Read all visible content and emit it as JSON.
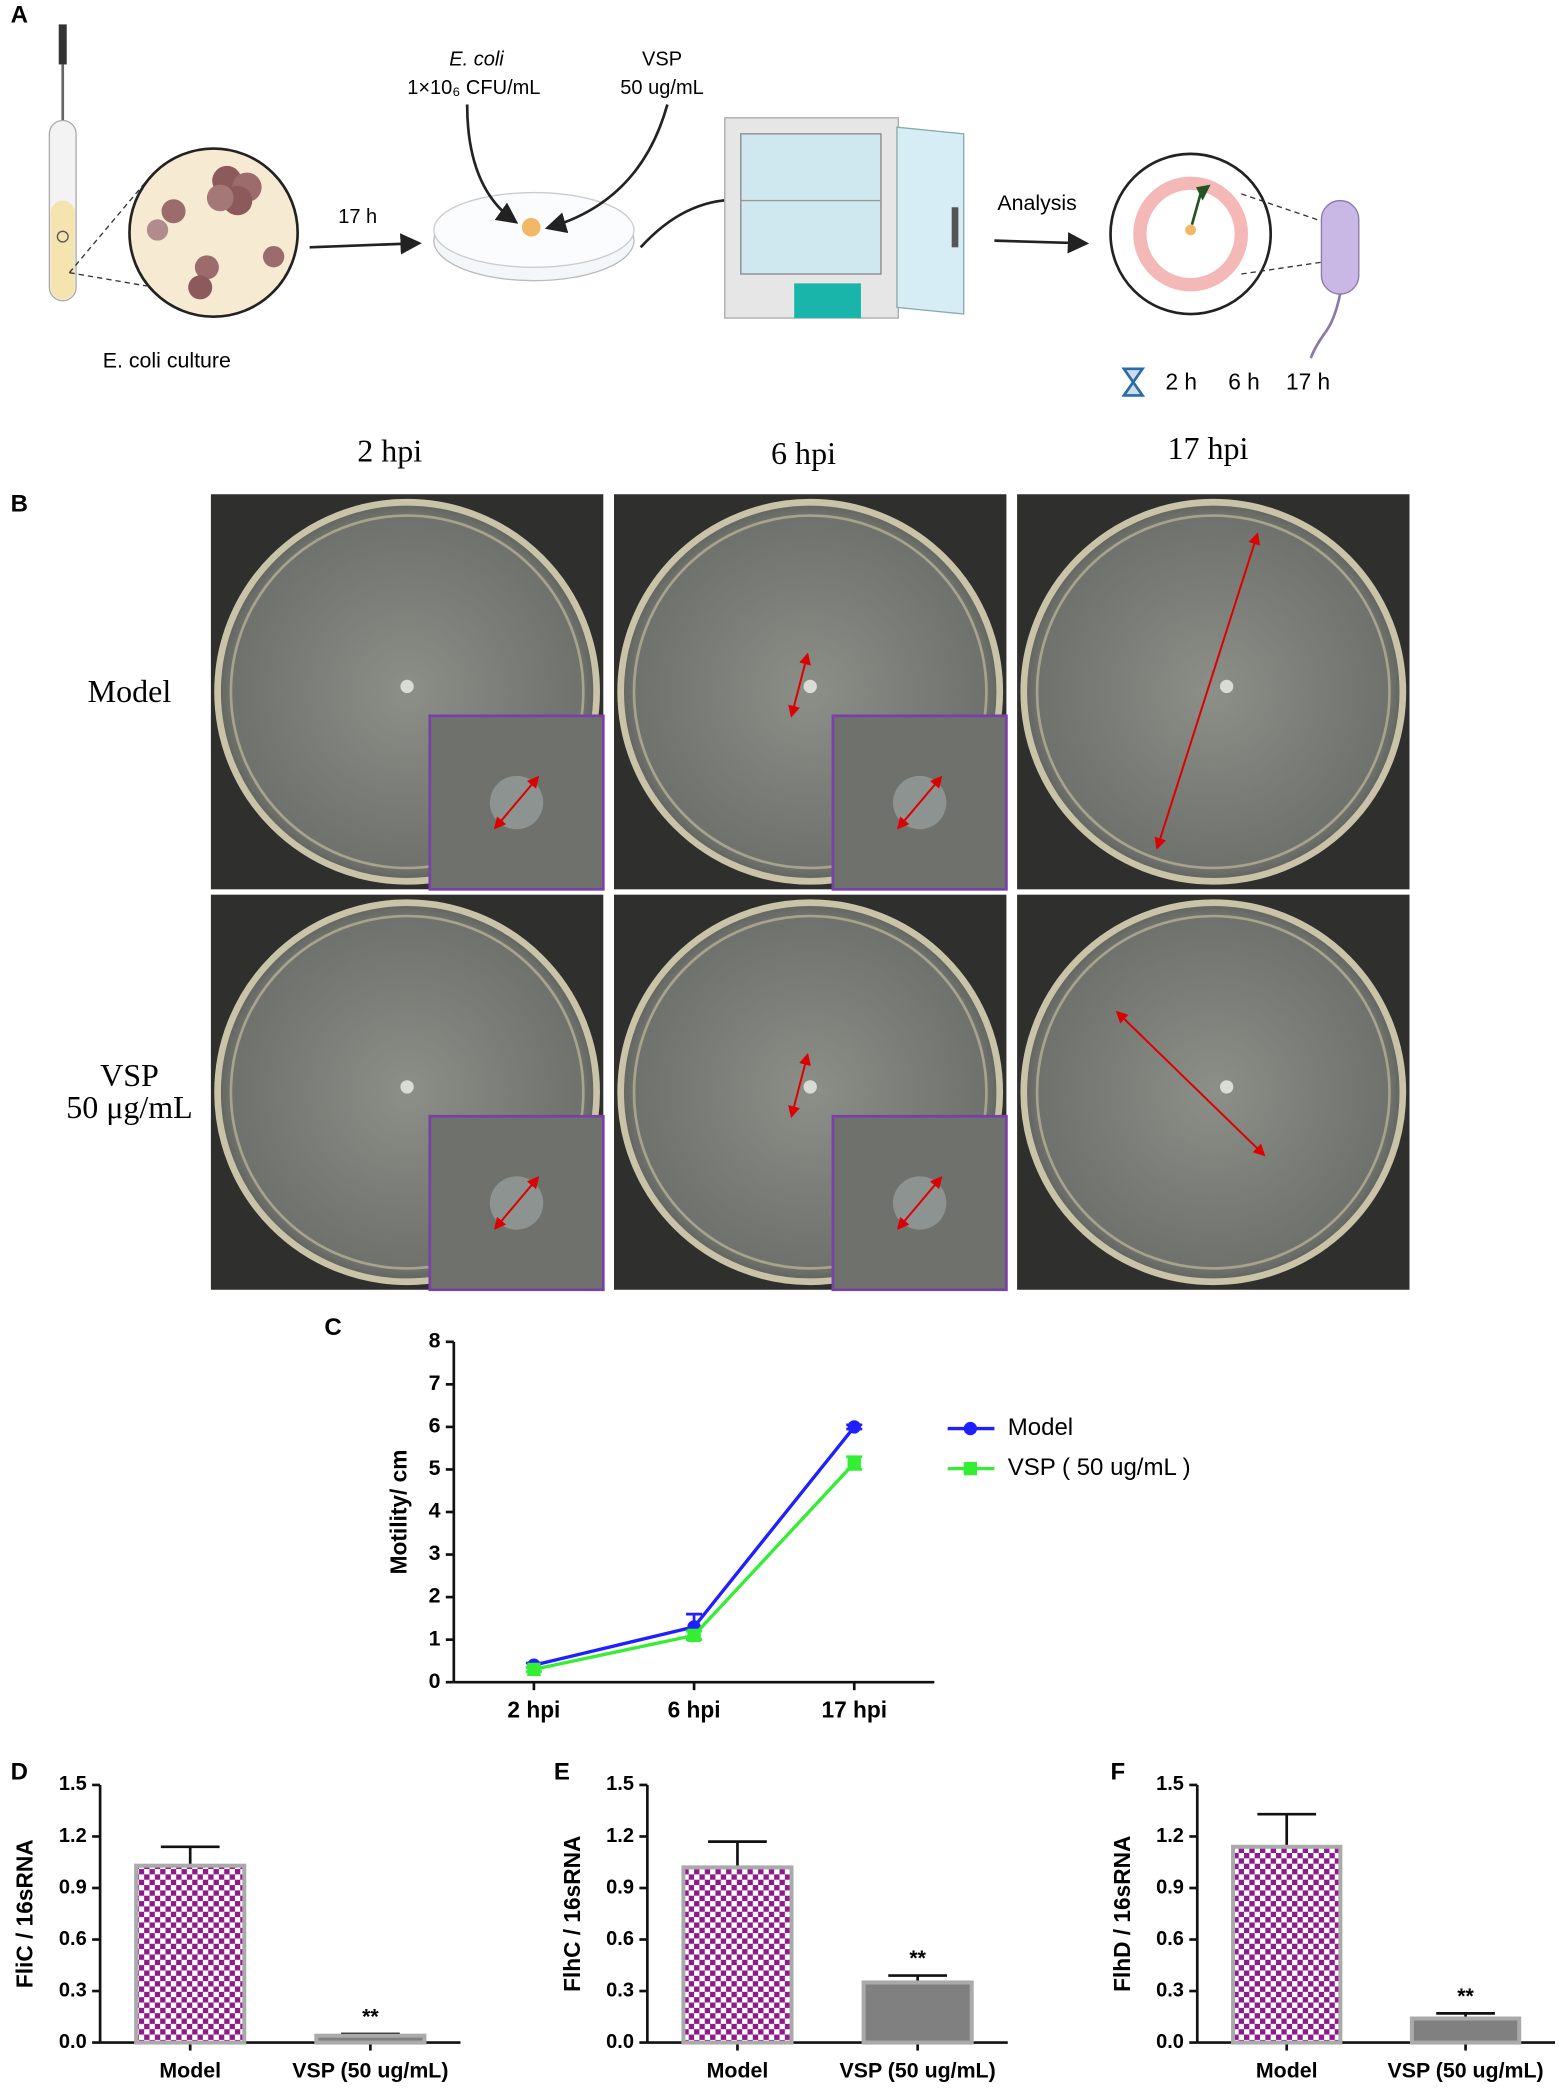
{
  "panel_a": {
    "letter": "A",
    "inoculum_organism": "E. coli",
    "inoculum_dose": "1×10₆ CFU/mL",
    "treatment": "VSP",
    "treatment_dose": "50 ug/mL",
    "incubation": "17 h",
    "step": "Analysis",
    "culture": "E. coli culture",
    "timepoints": [
      "2 h",
      "6 h",
      "17 h"
    ]
  },
  "panel_b": {
    "letter": "B",
    "columns": [
      "2 hpi",
      "6 hpi",
      "17 hpi"
    ],
    "rows": [
      [
        "Model"
      ],
      [
        "VSP",
        "50 μg/mL"
      ]
    ]
  },
  "chart_data": [
    {
      "type": "line",
      "panel": "C",
      "y_label": "Motility/ cm",
      "categories": [
        "2 hpi",
        "6 hpi",
        "17 hpi"
      ],
      "series": [
        {
          "name": "Model",
          "color": "#1f1fff",
          "marker": "circle",
          "values": [
            0.4,
            1.3,
            6.0
          ],
          "errors": [
            0.05,
            0.3,
            0.05
          ]
        },
        {
          "name": "VSP ( 50 ug/mL )",
          "color": "#33ee33",
          "marker": "square",
          "values": [
            0.3,
            1.1,
            5.15
          ],
          "errors": [
            0.05,
            0.1,
            0.15
          ]
        }
      ],
      "ylim": [
        0,
        8
      ],
      "yticks": [
        0,
        1,
        2,
        3,
        4,
        5,
        6,
        7,
        8
      ]
    },
    {
      "type": "bar",
      "panel": "D",
      "y_label": "FliC / 16sRNA",
      "categories": [
        "Model",
        "VSP (50 ug/mL)"
      ],
      "values": [
        1.03,
        0.04
      ],
      "errors": [
        0.11,
        0.01
      ],
      "annotations": [
        null,
        "**"
      ],
      "colors": [
        "#8e1a8e",
        "#808080"
      ],
      "ylim": [
        0,
        1.5
      ],
      "yticks": [
        {
          "value": 0,
          "label": "0.0"
        },
        0.3,
        0.6,
        0.9,
        1.2,
        1.5
      ]
    },
    {
      "type": "bar",
      "panel": "E",
      "y_label": "FlhC / 16sRNA",
      "categories": [
        "Model",
        "VSP (50 ug/mL)"
      ],
      "values": [
        1.02,
        0.35
      ],
      "errors": [
        0.15,
        0.04
      ],
      "annotations": [
        null,
        "**"
      ],
      "colors": [
        "#8e1a8e",
        "#808080"
      ],
      "ylim": [
        0,
        1.5
      ],
      "yticks": [
        {
          "value": 0,
          "label": "0.0"
        },
        0.3,
        0.6,
        0.9,
        1.2,
        1.5
      ]
    },
    {
      "type": "bar",
      "panel": "F",
      "y_label": "FlhD / 16sRNA",
      "categories": [
        "Model",
        "VSP (50 ug/mL)"
      ],
      "values": [
        1.14,
        0.14
      ],
      "errors": [
        0.19,
        0.03
      ],
      "annotations": [
        null,
        "**"
      ],
      "colors": [
        "#8e1a8e",
        "#808080"
      ],
      "ylim": [
        0,
        1.5
      ],
      "yticks": [
        {
          "value": 0,
          "label": "0.0"
        },
        0.3,
        0.6,
        0.9,
        1.2,
        1.5
      ]
    }
  ]
}
